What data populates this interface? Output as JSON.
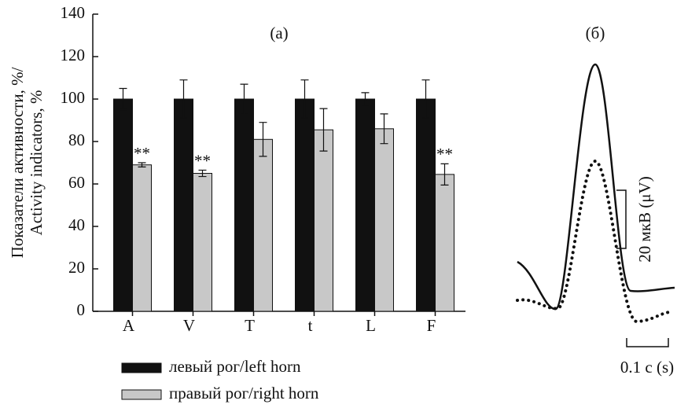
{
  "chart_data": {
    "type": "bar",
    "panel_label": "(а)",
    "ylabel": [
      "Показатели активности, %/",
      "Activity indicators, %"
    ],
    "categories": [
      "A",
      "V",
      "T",
      "t",
      "L",
      "F"
    ],
    "series": [
      {
        "name": "левый рог/left horn",
        "color": "#111111",
        "values": [
          100,
          100,
          100,
          100,
          100,
          100
        ],
        "errors": [
          5,
          9,
          7,
          9,
          3,
          9
        ]
      },
      {
        "name": "правый рог/right horn",
        "color": "#c8c8c8",
        "values": [
          69,
          65,
          81,
          85.5,
          86,
          64.5
        ],
        "errors": [
          1,
          1.5,
          8,
          10,
          7,
          5
        ]
      }
    ],
    "annotations": [
      {
        "text": "**",
        "x": "A"
      },
      {
        "text": "**",
        "x": "V"
      },
      {
        "text": "**",
        "x": "F"
      }
    ],
    "ylim": [
      0,
      140
    ],
    "yticks": [
      0,
      20,
      40,
      60,
      80,
      100,
      120,
      140
    ]
  },
  "panel_b": {
    "label": "(б)",
    "scale_y": "20 мкВ (μV)",
    "scale_x": "0.1 с (s)"
  }
}
